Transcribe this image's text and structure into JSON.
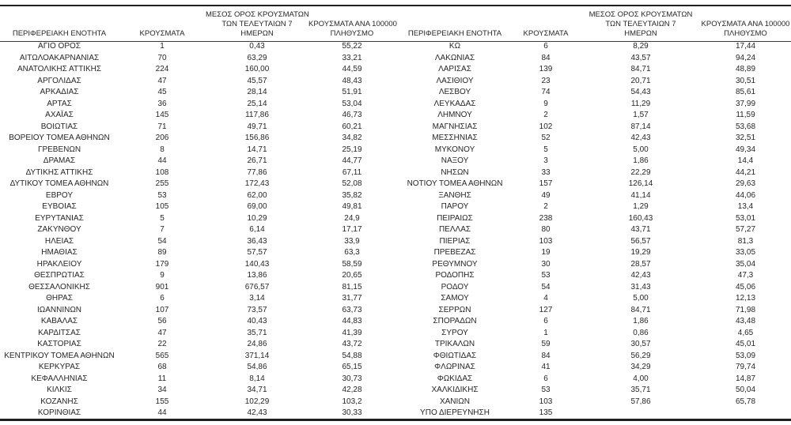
{
  "colors": {
    "background": "#ffffff",
    "text": "#262626",
    "rule": "#1f1f1f"
  },
  "header": {
    "region": "ΠΕΡΙΦΕΡΕΙΑΚΗ ΕΝΟΤΗΤΑ",
    "cases": "ΚΡΟΥΣΜΑΤΑ",
    "avg7_line1": "ΜΕΣΟΣ ΟΡΟΣ ΚΡΟΥΣΜΑΤΩΝ",
    "avg7_line2": "ΤΩΝ ΤΕΛΕΥΤΑΙΩΝ 7",
    "avg7_line3": "ΗΜΕΡΩΝ",
    "per100k_line1": "ΚΡΟΥΣΜΑΤΑ ΑΝΑ 100000",
    "per100k_line2": "ΠΛΗΘΥΣΜΟ"
  },
  "left_table": {
    "rows": [
      {
        "region": "ΑΓΙΟ ΟΡΟΣ",
        "cases": "1",
        "avg7": "0,43",
        "per100k": "55,22"
      },
      {
        "region": "ΑΙΤΩΛΟΑΚΑΡΝΑΝΙΑΣ",
        "cases": "70",
        "avg7": "63,29",
        "per100k": "33,21"
      },
      {
        "region": "ΑΝΑΤΟΛΙΚΗΣ ΑΤΤΙΚΗΣ",
        "cases": "224",
        "avg7": "160,00",
        "per100k": "44,59"
      },
      {
        "region": "ΑΡΓΟΛΙΔΑΣ",
        "cases": "47",
        "avg7": "45,57",
        "per100k": "48,43"
      },
      {
        "region": "ΑΡΚΑΔΙΑΣ",
        "cases": "45",
        "avg7": "28,14",
        "per100k": "51,91"
      },
      {
        "region": "ΑΡΤΑΣ",
        "cases": "36",
        "avg7": "25,14",
        "per100k": "53,04"
      },
      {
        "region": "ΑΧΑΪΑΣ",
        "cases": "145",
        "avg7": "117,86",
        "per100k": "46,73"
      },
      {
        "region": "ΒΟΙΩΤΙΑΣ",
        "cases": "71",
        "avg7": "49,71",
        "per100k": "60,21"
      },
      {
        "region": "ΒΟΡΕΙΟΥ ΤΟΜΕΑ ΑΘΗΝΩΝ",
        "cases": "206",
        "avg7": "156,86",
        "per100k": "34,82"
      },
      {
        "region": "ΓΡΕΒΕΝΩΝ",
        "cases": "8",
        "avg7": "14,71",
        "per100k": "25,19"
      },
      {
        "region": "ΔΡΑΜΑΣ",
        "cases": "44",
        "avg7": "26,71",
        "per100k": "44,77"
      },
      {
        "region": "ΔΥΤΙΚΗΣ ΑΤΤΙΚΗΣ",
        "cases": "108",
        "avg7": "77,86",
        "per100k": "67,11"
      },
      {
        "region": "ΔΥΤΙΚΟΥ ΤΟΜΕΑ ΑΘΗΝΩΝ",
        "cases": "255",
        "avg7": "172,43",
        "per100k": "52,08"
      },
      {
        "region": "ΕΒΡΟΥ",
        "cases": "53",
        "avg7": "62,00",
        "per100k": "35,82"
      },
      {
        "region": "ΕΥΒΟΙΑΣ",
        "cases": "105",
        "avg7": "69,00",
        "per100k": "49,81"
      },
      {
        "region": "ΕΥΡΥΤΑΝΙΑΣ",
        "cases": "5",
        "avg7": "10,29",
        "per100k": "24,9"
      },
      {
        "region": "ΖΑΚΥΝΘΟΥ",
        "cases": "7",
        "avg7": "6,14",
        "per100k": "17,17"
      },
      {
        "region": "ΗΛΕΙΑΣ",
        "cases": "54",
        "avg7": "36,43",
        "per100k": "33,9"
      },
      {
        "region": "ΗΜΑΘΙΑΣ",
        "cases": "89",
        "avg7": "57,57",
        "per100k": "63,3"
      },
      {
        "region": "ΗΡΑΚΛΕΙΟΥ",
        "cases": "179",
        "avg7": "140,43",
        "per100k": "58,59"
      },
      {
        "region": "ΘΕΣΠΡΩΤΙΑΣ",
        "cases": "9",
        "avg7": "13,86",
        "per100k": "20,65"
      },
      {
        "region": "ΘΕΣΣΑΛΟΝΙΚΗΣ",
        "cases": "901",
        "avg7": "676,57",
        "per100k": "81,15"
      },
      {
        "region": "ΘΗΡΑΣ",
        "cases": "6",
        "avg7": "3,14",
        "per100k": "31,77"
      },
      {
        "region": "ΙΩΑΝΝΙΝΩΝ",
        "cases": "107",
        "avg7": "73,57",
        "per100k": "63,73"
      },
      {
        "region": "ΚΑΒΑΛΑΣ",
        "cases": "56",
        "avg7": "40,43",
        "per100k": "44,83"
      },
      {
        "region": "ΚΑΡΔΙΤΣΑΣ",
        "cases": "47",
        "avg7": "35,71",
        "per100k": "41,39"
      },
      {
        "region": "ΚΑΣΤΟΡΙΑΣ",
        "cases": "22",
        "avg7": "24,86",
        "per100k": "43,72"
      },
      {
        "region": "ΚΕΝΤΡΙΚΟΥ ΤΟΜΕΑ ΑΘΗΝΩΝ",
        "cases": "565",
        "avg7": "371,14",
        "per100k": "54,88"
      },
      {
        "region": "ΚΕΡΚΥΡΑΣ",
        "cases": "68",
        "avg7": "54,86",
        "per100k": "65,15"
      },
      {
        "region": "ΚΕΦΑΛΛΗΝΙΑΣ",
        "cases": "11",
        "avg7": "8,14",
        "per100k": "30,73"
      },
      {
        "region": "ΚΙΛΚΙΣ",
        "cases": "34",
        "avg7": "34,71",
        "per100k": "42,28"
      },
      {
        "region": "ΚΟΖΑΝΗΣ",
        "cases": "155",
        "avg7": "102,29",
        "per100k": "103,2"
      },
      {
        "region": "ΚΟΡΙΝΘΙΑΣ",
        "cases": "44",
        "avg7": "42,43",
        "per100k": "30,33"
      }
    ]
  },
  "right_table": {
    "rows": [
      {
        "region": "ΚΩ",
        "cases": "6",
        "avg7": "8,29",
        "per100k": "17,44"
      },
      {
        "region": "ΛΑΚΩΝΙΑΣ",
        "cases": "84",
        "avg7": "43,57",
        "per100k": "94,24"
      },
      {
        "region": "ΛΑΡΙΣΑΣ",
        "cases": "139",
        "avg7": "84,71",
        "per100k": "48,89"
      },
      {
        "region": "ΛΑΣΙΘΙΟΥ",
        "cases": "23",
        "avg7": "20,71",
        "per100k": "30,51"
      },
      {
        "region": "ΛΕΣΒΟΥ",
        "cases": "74",
        "avg7": "54,43",
        "per100k": "85,61"
      },
      {
        "region": "ΛΕΥΚΑΔΑΣ",
        "cases": "9",
        "avg7": "11,29",
        "per100k": "37,99"
      },
      {
        "region": "ΛΗΜΝΟΥ",
        "cases": "2",
        "avg7": "1,57",
        "per100k": "11,59"
      },
      {
        "region": "ΜΑΓΝΗΣΙΑΣ",
        "cases": "102",
        "avg7": "87,14",
        "per100k": "53,68"
      },
      {
        "region": "ΜΕΣΣΗΝΙΑΣ",
        "cases": "52",
        "avg7": "42,43",
        "per100k": "32,51"
      },
      {
        "region": "ΜΥΚΟΝΟΥ",
        "cases": "5",
        "avg7": "5,00",
        "per100k": "49,34"
      },
      {
        "region": "ΝΑΞΟΥ",
        "cases": "3",
        "avg7": "1,86",
        "per100k": "14,4"
      },
      {
        "region": "ΝΗΣΩΝ",
        "cases": "33",
        "avg7": "22,29",
        "per100k": "44,21"
      },
      {
        "region": "ΝΟΤΙΟΥ ΤΟΜΕΑ ΑΘΗΝΩΝ",
        "cases": "157",
        "avg7": "126,14",
        "per100k": "29,63"
      },
      {
        "region": "ΞΑΝΘΗΣ",
        "cases": "49",
        "avg7": "41,14",
        "per100k": "44,06"
      },
      {
        "region": "ΠΑΡΟΥ",
        "cases": "2",
        "avg7": "1,29",
        "per100k": "13,4"
      },
      {
        "region": "ΠΕΙΡΑΙΩΣ",
        "cases": "238",
        "avg7": "160,43",
        "per100k": "53,01"
      },
      {
        "region": "ΠΕΛΛΑΣ",
        "cases": "80",
        "avg7": "43,71",
        "per100k": "57,27"
      },
      {
        "region": "ΠΙΕΡΙΑΣ",
        "cases": "103",
        "avg7": "56,57",
        "per100k": "81,3"
      },
      {
        "region": "ΠΡΕΒΕΖΑΣ",
        "cases": "19",
        "avg7": "19,29",
        "per100k": "33,05"
      },
      {
        "region": "ΡΕΘΥΜΝΟΥ",
        "cases": "30",
        "avg7": "28,57",
        "per100k": "35,04"
      },
      {
        "region": "ΡΟΔΟΠΗΣ",
        "cases": "53",
        "avg7": "42,43",
        "per100k": "47,3"
      },
      {
        "region": "ΡΟΔΟΥ",
        "cases": "54",
        "avg7": "31,43",
        "per100k": "45,06"
      },
      {
        "region": "ΣΑΜΟΥ",
        "cases": "4",
        "avg7": "5,00",
        "per100k": "12,13"
      },
      {
        "region": "ΣΕΡΡΩΝ",
        "cases": "127",
        "avg7": "84,71",
        "per100k": "71,98"
      },
      {
        "region": "ΣΠΟΡΑΔΩΝ",
        "cases": "6",
        "avg7": "1,86",
        "per100k": "43,48"
      },
      {
        "region": "ΣΥΡΟΥ",
        "cases": "1",
        "avg7": "0,86",
        "per100k": "4,65"
      },
      {
        "region": "ΤΡΙΚΑΛΩΝ",
        "cases": "59",
        "avg7": "30,57",
        "per100k": "45,01"
      },
      {
        "region": "ΦΘΙΩΤΙΔΑΣ",
        "cases": "84",
        "avg7": "56,29",
        "per100k": "53,09"
      },
      {
        "region": "ΦΛΩΡΙΝΑΣ",
        "cases": "41",
        "avg7": "34,29",
        "per100k": "79,74"
      },
      {
        "region": "ΦΩΚΙΔΑΣ",
        "cases": "6",
        "avg7": "4,00",
        "per100k": "14,87"
      },
      {
        "region": "ΧΑΛΚΙΔΙΚΗΣ",
        "cases": "53",
        "avg7": "35,71",
        "per100k": "50,04"
      },
      {
        "region": "ΧΑΝΙΩΝ",
        "cases": "103",
        "avg7": "57,86",
        "per100k": "65,78"
      },
      {
        "region": "ΥΠΟ ΔΙΕΡΕΥΝΗΣΗ",
        "cases": "135",
        "avg7": "",
        "per100k": ""
      }
    ]
  }
}
